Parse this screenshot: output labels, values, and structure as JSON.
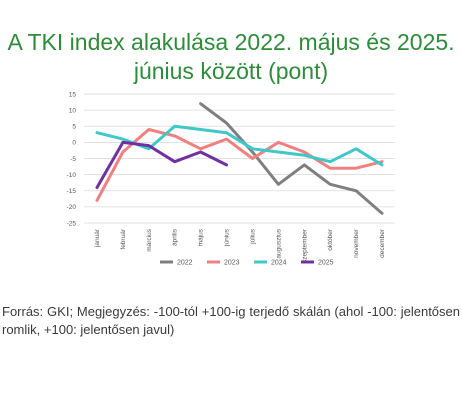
{
  "title_line1": "A TKI index alakulása 2022. május és 2025.",
  "title_line2": "június között (pont)",
  "note": "Forrás: GKI; Megjegyzés: -100-tól +100-ig terjedő skálán (ahol -100: jelentősen romlik, +100: jelentősen javul)",
  "chart_data": {
    "type": "line",
    "title": "A TKI index alakulása 2022. május és 2025. június között (pont)",
    "categories": [
      "január",
      "február",
      "március",
      "április",
      "május",
      "június",
      "július",
      "augusztus",
      "szeptember",
      "október",
      "november",
      "december"
    ],
    "ylim": [
      -25,
      15
    ],
    "yticks": [
      15,
      10,
      5,
      0,
      -5,
      -10,
      -15,
      -20,
      -25
    ],
    "grid": true,
    "legend_position": "bottom",
    "series": [
      {
        "name": "2022",
        "color": "#7f7f7f",
        "values": [
          null,
          null,
          null,
          null,
          12,
          6,
          -3,
          -13,
          -7,
          -13,
          -15,
          -22
        ]
      },
      {
        "name": "2023",
        "color": "#f08080",
        "values": [
          -18,
          -3,
          4,
          2,
          -2,
          1,
          -5,
          0,
          -3,
          -8,
          -8,
          -6
        ]
      },
      {
        "name": "2024",
        "color": "#3ec8c8",
        "values": [
          3,
          1,
          -2,
          5,
          4,
          3,
          -2,
          -3,
          -4,
          -6,
          -2,
          -7
        ]
      },
      {
        "name": "2025",
        "color": "#7030a0",
        "values": [
          -14,
          0,
          -1,
          -6,
          -3,
          -7,
          null,
          null,
          null,
          null,
          null,
          null
        ]
      }
    ]
  }
}
